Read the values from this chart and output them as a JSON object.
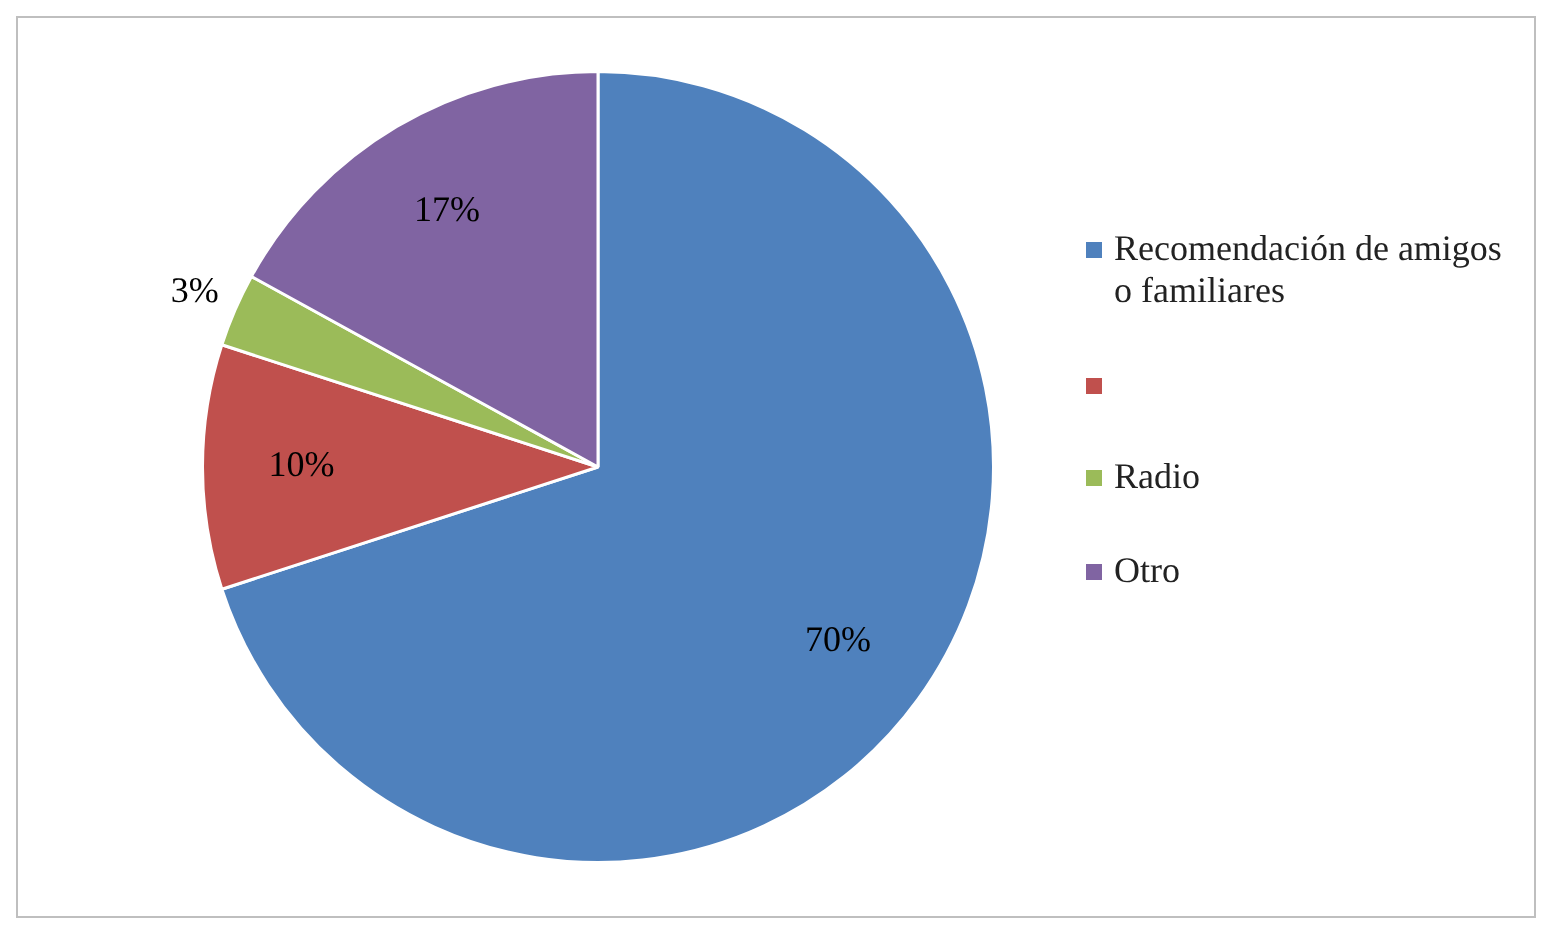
{
  "chart_data": {
    "type": "pie",
    "categories": [
      "Recomendación de amigos o familiares",
      null,
      "Radio",
      "Otro"
    ],
    "values": [
      70,
      10,
      3,
      17
    ],
    "colors": [
      "#4f81bd",
      "#c0504d",
      "#9bbb59",
      "#8064a2"
    ],
    "value_labels": [
      "70%",
      "10%",
      "3%",
      "17%"
    ],
    "legend": "right"
  }
}
